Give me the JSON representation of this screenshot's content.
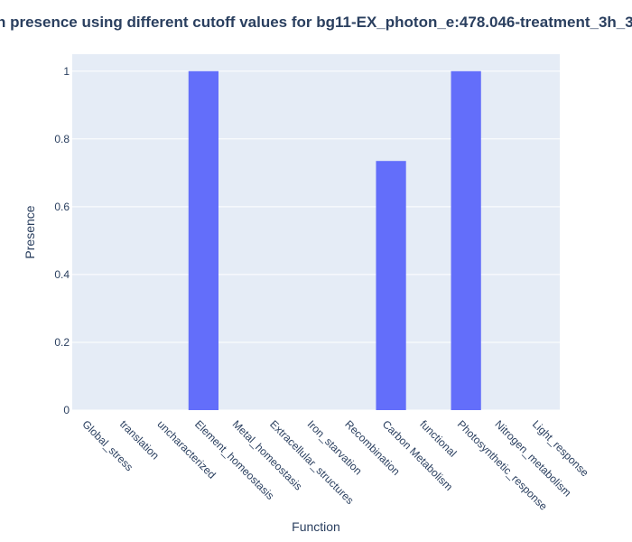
{
  "colors": {
    "bar": "#636efa",
    "plot_bg": "#e5ecf6",
    "grid": "#ffffff",
    "text": "#2a3f5f"
  },
  "chart_data": {
    "type": "bar",
    "title": "n presence using different cutoff values for bg11-EX_photon_e:478.046-treatment_3h_3",
    "xlabel": "Function",
    "ylabel": "Presence",
    "ylim": [
      0,
      1.05
    ],
    "yticks": [
      0,
      0.2,
      0.4,
      0.6,
      0.8,
      1
    ],
    "ytick_labels": [
      "0",
      "0.2",
      "0.4",
      "0.6",
      "0.8",
      "1"
    ],
    "grid": true,
    "categories": [
      "Global_stress",
      "translation",
      "uncharacterized",
      "Element_homeostasis",
      "Metal_homeostasis",
      "Extracellular_structures",
      "Iron_starvation",
      "Recombination",
      "Carbon Metabolism",
      "functional",
      "Photosynthetic_response",
      "Nitrogen_metabolism",
      "Light_response"
    ],
    "values": [
      0,
      0,
      0,
      1,
      0,
      0,
      0,
      0,
      0.735,
      0,
      1,
      0,
      0
    ]
  }
}
